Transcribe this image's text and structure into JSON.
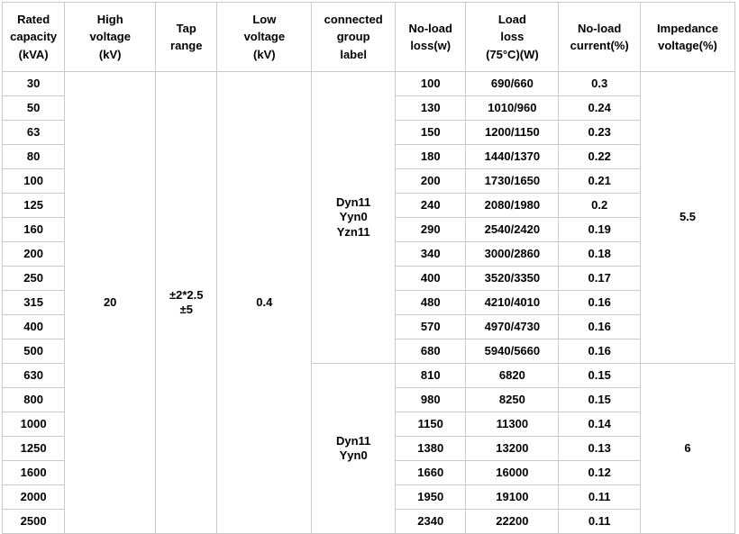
{
  "table": {
    "title": "transformer-specification-table",
    "headers": [
      "Rated\ncapacity\n(kVA)",
      "High\nvoltage\n(kV)",
      "Tap\nrange",
      "Low\nvoltage\n(kV)",
      "connected\ngroup\nlabel",
      "No-load\nloss(w)",
      "Load\nloss\n(75°C)(W)",
      "No-load\ncurrent(%)",
      "Impedance\nvoltage(%)"
    ],
    "merged": {
      "high_voltage": "20",
      "tap_range": "±2*2.5\n±5",
      "low_voltage": "0.4",
      "group_1": "Dyn11\nYyn0\nYzn11",
      "group_2": "Dyn11\nYyn0",
      "impedance_1": "5.5",
      "impedance_2": "6"
    },
    "group_1_row_count": 12,
    "group_2_row_count": 7,
    "rows": [
      {
        "capacity": "30",
        "no_load_loss": "100",
        "load_loss": "690/660",
        "no_load_current": "0.3"
      },
      {
        "capacity": "50",
        "no_load_loss": "130",
        "load_loss": "1010/960",
        "no_load_current": "0.24"
      },
      {
        "capacity": "63",
        "no_load_loss": "150",
        "load_loss": "1200/1150",
        "no_load_current": "0.23"
      },
      {
        "capacity": "80",
        "no_load_loss": "180",
        "load_loss": "1440/1370",
        "no_load_current": "0.22"
      },
      {
        "capacity": "100",
        "no_load_loss": "200",
        "load_loss": "1730/1650",
        "no_load_current": "0.21"
      },
      {
        "capacity": "125",
        "no_load_loss": "240",
        "load_loss": "2080/1980",
        "no_load_current": "0.2"
      },
      {
        "capacity": "160",
        "no_load_loss": "290",
        "load_loss": "2540/2420",
        "no_load_current": "0.19"
      },
      {
        "capacity": "200",
        "no_load_loss": "340",
        "load_loss": "3000/2860",
        "no_load_current": "0.18"
      },
      {
        "capacity": "250",
        "no_load_loss": "400",
        "load_loss": "3520/3350",
        "no_load_current": "0.17"
      },
      {
        "capacity": "315",
        "no_load_loss": "480",
        "load_loss": "4210/4010",
        "no_load_current": "0.16"
      },
      {
        "capacity": "400",
        "no_load_loss": "570",
        "load_loss": "4970/4730",
        "no_load_current": "0.16"
      },
      {
        "capacity": "500",
        "no_load_loss": "680",
        "load_loss": "5940/5660",
        "no_load_current": "0.16"
      },
      {
        "capacity": "630",
        "no_load_loss": "810",
        "load_loss": "6820",
        "no_load_current": "0.15"
      },
      {
        "capacity": "800",
        "no_load_loss": "980",
        "load_loss": "8250",
        "no_load_current": "0.15"
      },
      {
        "capacity": "1000",
        "no_load_loss": "1150",
        "load_loss": "11300",
        "no_load_current": "0.14"
      },
      {
        "capacity": "1250",
        "no_load_loss": "1380",
        "load_loss": "13200",
        "no_load_current": "0.13"
      },
      {
        "capacity": "1600",
        "no_load_loss": "1660",
        "load_loss": "16000",
        "no_load_current": "0.12"
      },
      {
        "capacity": "2000",
        "no_load_loss": "1950",
        "load_loss": "19100",
        "no_load_current": "0.11"
      },
      {
        "capacity": "2500",
        "no_load_loss": "2340",
        "load_loss": "22200",
        "no_load_current": "0.11"
      }
    ]
  },
  "colors": {
    "border": "#c9c9c9",
    "text": "#000000",
    "background": "#ffffff"
  }
}
